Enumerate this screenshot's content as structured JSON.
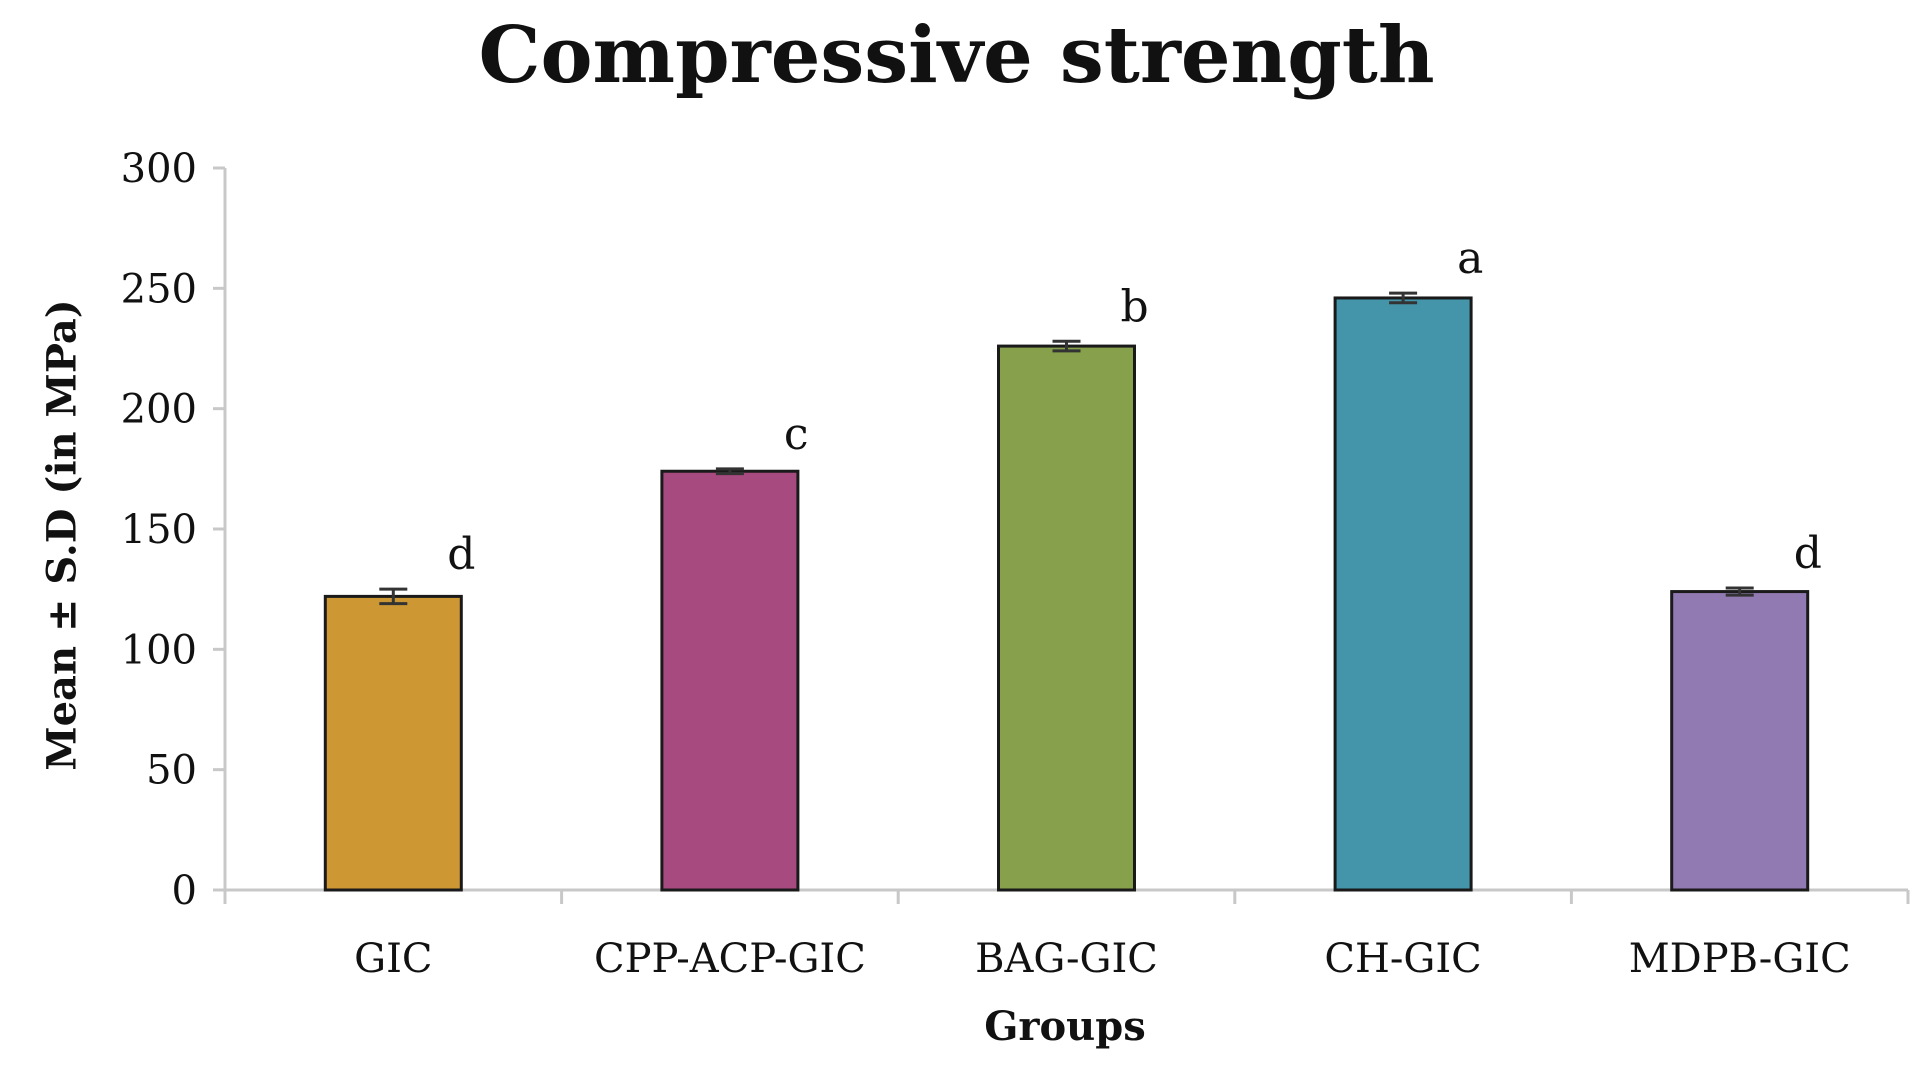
{
  "chart_data": {
    "type": "bar",
    "title": "Compressive strength",
    "xlabel": "Groups",
    "ylabel": "Mean ± S.D (in MPa)",
    "categories": [
      "GIC",
      "CPP-ACP-GIC",
      "BAG-GIC",
      "CH-GIC",
      "MDPB-GIC"
    ],
    "values": [
      122,
      174,
      226,
      246,
      124
    ],
    "errors": [
      3,
      1,
      2,
      2,
      1.5
    ],
    "significance": [
      "d",
      "c",
      "b",
      "a",
      "d"
    ],
    "colors": [
      "#CD9834",
      "#A64A80",
      "#86A04B",
      "#4494AA",
      "#917AB2"
    ],
    "ylim": [
      0,
      300
    ],
    "yticks": [
      0,
      50,
      100,
      150,
      200,
      250,
      300
    ],
    "ytick_labels": [
      "0",
      "50",
      "100",
      "150",
      "200",
      "250",
      "300"
    ],
    "grid": false,
    "legend": "none"
  }
}
